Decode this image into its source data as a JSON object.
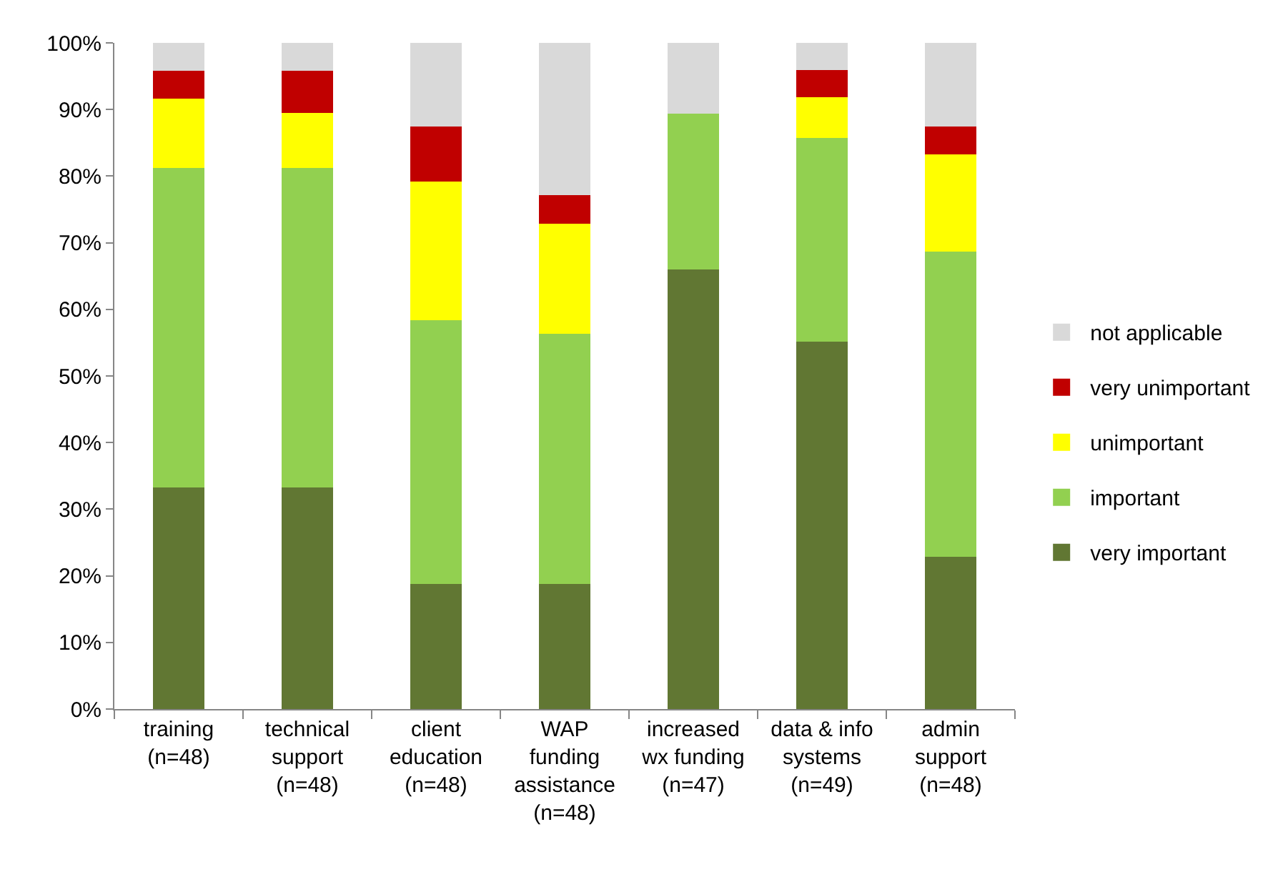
{
  "chart_data": {
    "type": "bar",
    "stacked": true,
    "categories": [
      "training\n(n=48)",
      "technical\nsupport\n(n=48)",
      "client\neducation\n(n=48)",
      "WAP\nfunding\nassistance\n(n=48)",
      "increased\nwx funding\n(n=47)",
      "data & info\nsystems\n(n=49)",
      "admin\nsupport\n(n=48)"
    ],
    "series": [
      {
        "name": "very important",
        "color": "#617733",
        "values": [
          33.3,
          33.3,
          18.8,
          18.8,
          66.0,
          55.1,
          22.9
        ]
      },
      {
        "name": "important",
        "color": "#92d050",
        "values": [
          47.9,
          47.9,
          39.6,
          37.5,
          23.4,
          30.6,
          45.8
        ]
      },
      {
        "name": "unimportant",
        "color": "#ffff00",
        "values": [
          10.4,
          8.3,
          20.8,
          16.6,
          0,
          6.1,
          14.6
        ]
      },
      {
        "name": "very unimportant",
        "color": "#c00000",
        "values": [
          4.2,
          6.3,
          8.3,
          4.2,
          0,
          4.1,
          4.2
        ]
      },
      {
        "name": "not applicable",
        "color": "#d9d9d9",
        "values": [
          4.2,
          4.2,
          12.5,
          22.9,
          10.6,
          4.1,
          12.5
        ]
      }
    ],
    "ylim": [
      0,
      100
    ],
    "yticks": [
      {
        "value": 0,
        "label": "0%"
      },
      {
        "value": 10,
        "label": "10%"
      },
      {
        "value": 20,
        "label": "20%"
      },
      {
        "value": 30,
        "label": "30%"
      },
      {
        "value": 40,
        "label": "40%"
      },
      {
        "value": 50,
        "label": "50%"
      },
      {
        "value": 60,
        "label": "60%"
      },
      {
        "value": 70,
        "label": "70%"
      },
      {
        "value": 80,
        "label": "80%"
      },
      {
        "value": 90,
        "label": "90%"
      },
      {
        "value": 100,
        "label": "100%"
      }
    ],
    "legend": "right"
  }
}
